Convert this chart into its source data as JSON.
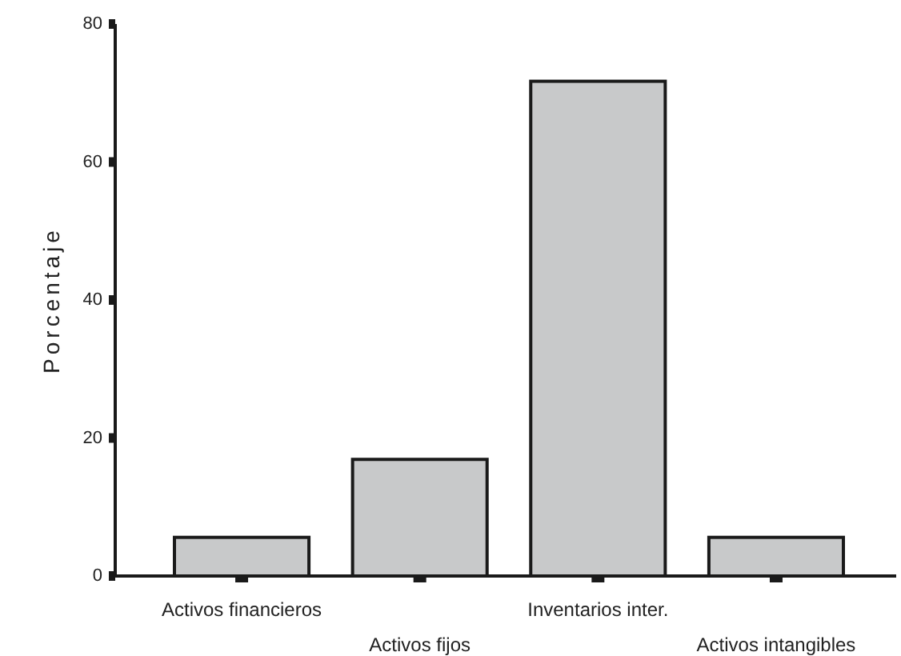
{
  "chart_data": {
    "type": "bar",
    "ylabel": "Porcentaje",
    "categories": [
      "Activos financieros",
      "Activos fijos",
      "Inventarios inter.",
      "Activos intangibles"
    ],
    "values": [
      5.6,
      16.9,
      71.7,
      5.6
    ],
    "color": "#c8c9ca",
    "ylim": [
      0,
      80
    ],
    "yticks": [
      0,
      20,
      40,
      60,
      80
    ],
    "grid": false
  }
}
